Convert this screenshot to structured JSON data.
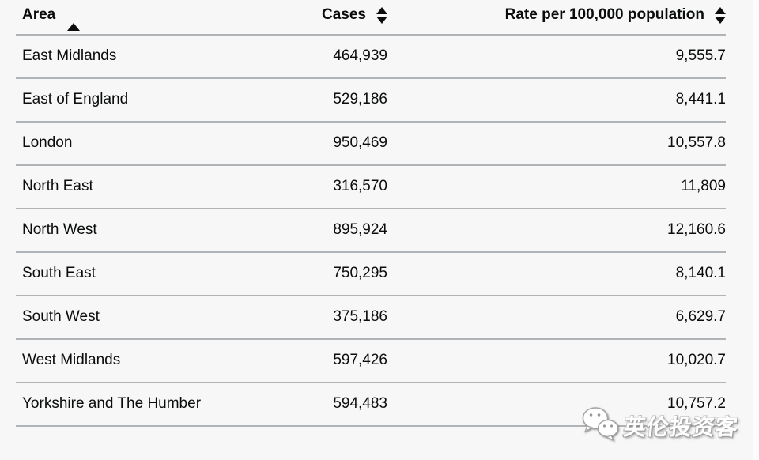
{
  "table": {
    "columns": [
      {
        "label": "Area",
        "sort_state": "ascending",
        "icon": "sort-ascending-icon"
      },
      {
        "label": "Cases",
        "sort_state": "sortable",
        "icon": "sort-both-icon"
      },
      {
        "label": "Rate per 100,000 population",
        "sort_state": "sortable",
        "icon": "sort-both-icon"
      }
    ],
    "rows": [
      {
        "area": "East Midlands",
        "cases": "464,939",
        "rate": "9,555.7"
      },
      {
        "area": "East of England",
        "cases": "529,186",
        "rate": "8,441.1"
      },
      {
        "area": "London",
        "cases": "950,469",
        "rate": "10,557.8"
      },
      {
        "area": "North East",
        "cases": "316,570",
        "rate": "11,809"
      },
      {
        "area": "North West",
        "cases": "895,924",
        "rate": "12,160.6"
      },
      {
        "area": "South East",
        "cases": "750,295",
        "rate": "8,140.1"
      },
      {
        "area": "South West",
        "cases": "375,186",
        "rate": "6,629.7"
      },
      {
        "area": "West Midlands",
        "cases": "597,426",
        "rate": "10,020.7"
      },
      {
        "area": "Yorkshire and The Humber",
        "cases": "594,483",
        "rate": "10,757.2"
      }
    ]
  },
  "chart_data": {
    "type": "table",
    "title": "",
    "columns": [
      "Area",
      "Cases",
      "Rate per 100,000 population"
    ],
    "categories": [
      "East Midlands",
      "East of England",
      "London",
      "North East",
      "North West",
      "South East",
      "South West",
      "West Midlands",
      "Yorkshire and The Humber"
    ],
    "series": [
      {
        "name": "Cases",
        "values": [
          464939,
          529186,
          950469,
          316570,
          895924,
          750295,
          375186,
          597426,
          594483
        ]
      },
      {
        "name": "Rate per 100,000 population",
        "values": [
          9555.7,
          8441.1,
          10557.8,
          11809,
          12160.6,
          8140.1,
          6629.7,
          10020.7,
          10757.2
        ]
      }
    ]
  },
  "watermark": {
    "text": "英伦投资客",
    "icon": "wechat-icon"
  },
  "colors": {
    "text": "#0b0c0c",
    "border": "#b1b4b6",
    "background": "#f7f7f8",
    "watermark_text": "#ffffff"
  }
}
